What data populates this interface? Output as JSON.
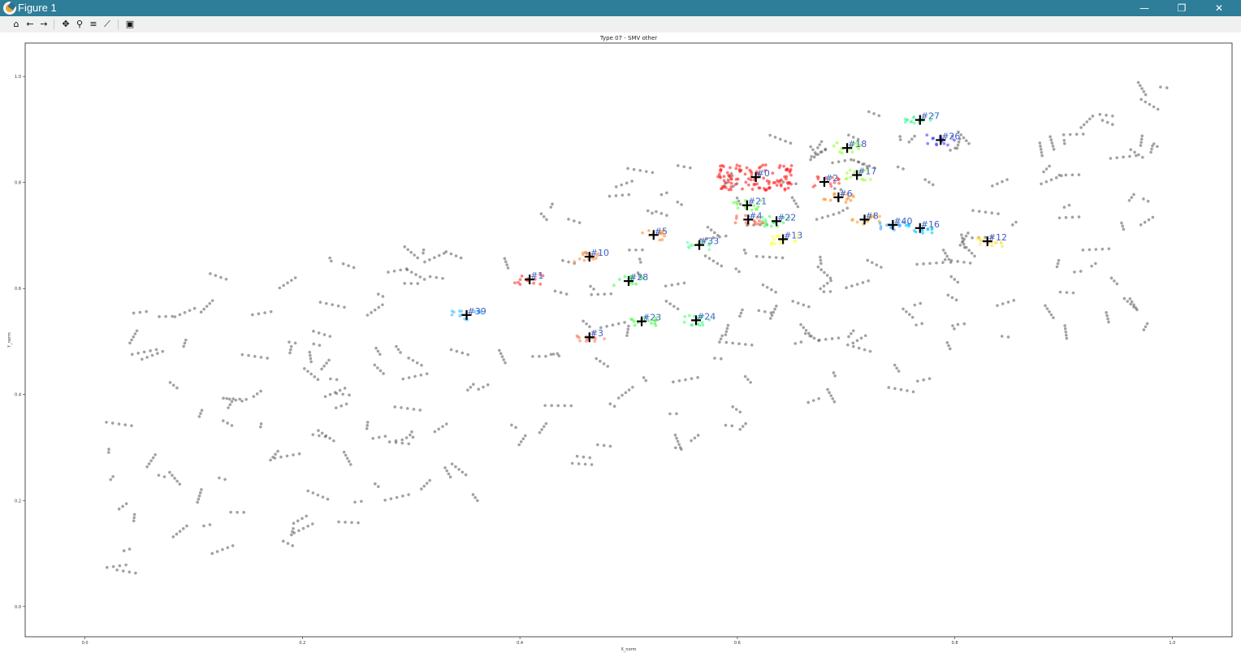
{
  "window": {
    "title": "Figure 1",
    "minimize_glyph": "—",
    "maximize_glyph": "❐",
    "close_glyph": "✕"
  },
  "toolbar": {
    "items": [
      {
        "name": "home-icon",
        "glyph": "⌂"
      },
      {
        "name": "back-arrow-icon",
        "glyph": "←"
      },
      {
        "name": "forward-arrow-icon",
        "glyph": "→"
      },
      {
        "name": "pan-icon",
        "glyph": "✥"
      },
      {
        "name": "zoom-icon",
        "glyph": "⚲"
      },
      {
        "name": "configure-subplots-icon",
        "glyph": "≡"
      },
      {
        "name": "edit-axis-icon",
        "glyph": "⟋"
      },
      {
        "name": "save-icon",
        "glyph": "▣"
      }
    ]
  },
  "chart_data": {
    "type": "scatter",
    "title": "Type 07 - SMV other",
    "xlabel": "X_norm",
    "ylabel": "Y_norm",
    "xlim": [
      -0.055,
      1.055
    ],
    "ylim": [
      -0.057,
      1.063
    ],
    "xticks": [
      0.0,
      0.2,
      0.4,
      0.6,
      0.8,
      1.0
    ],
    "yticks": [
      0.0,
      0.2,
      0.4,
      0.6,
      0.8,
      1.0
    ],
    "xtick_labels": [
      "0.0",
      "0.2",
      "0.4",
      "0.6",
      "0.8",
      "1.0"
    ],
    "ytick_labels": [
      "0.0",
      "0.2",
      "0.4",
      "0.6",
      "0.8",
      "1.0"
    ],
    "background_points_color": "#555555",
    "centroid_marker_color": "#000000",
    "annotation_color": "#3d5fc4",
    "clusters": [
      {
        "label": "#0",
        "x": 0.617,
        "y": 0.81,
        "color": "#ff2020"
      },
      {
        "label": "#1",
        "x": 0.409,
        "y": 0.617,
        "color": "#ff3030"
      },
      {
        "label": "#2",
        "x": 0.68,
        "y": 0.801,
        "color": "#ff4040"
      },
      {
        "label": "#3",
        "x": 0.464,
        "y": 0.508,
        "color": "#ff8060"
      },
      {
        "label": "#4",
        "x": 0.61,
        "y": 0.73,
        "color": "#ff6040"
      },
      {
        "label": "#5",
        "x": 0.523,
        "y": 0.701,
        "color": "#ff9030"
      },
      {
        "label": "#6",
        "x": 0.693,
        "y": 0.772,
        "color": "#ff8c20"
      },
      {
        "label": "#8",
        "x": 0.717,
        "y": 0.73,
        "color": "#ffa020"
      },
      {
        "label": "#10",
        "x": 0.464,
        "y": 0.66,
        "color": "#ff9040"
      },
      {
        "label": "#12",
        "x": 0.83,
        "y": 0.689,
        "color": "#ffe040"
      },
      {
        "label": "#13",
        "x": 0.642,
        "y": 0.693,
        "color": "#ffff40"
      },
      {
        "label": "#16",
        "x": 0.768,
        "y": 0.714,
        "color": "#00c8ff"
      },
      {
        "label": "#17",
        "x": 0.71,
        "y": 0.814,
        "color": "#a0ff40"
      },
      {
        "label": "#18",
        "x": 0.701,
        "y": 0.865,
        "color": "#90ff30"
      },
      {
        "label": "#21",
        "x": 0.609,
        "y": 0.757,
        "color": "#60ff40"
      },
      {
        "label": "#22",
        "x": 0.636,
        "y": 0.727,
        "color": "#40ff60"
      },
      {
        "label": "#23",
        "x": 0.512,
        "y": 0.538,
        "color": "#40ff40"
      },
      {
        "label": "#24",
        "x": 0.562,
        "y": 0.54,
        "color": "#40ff80"
      },
      {
        "label": "#26",
        "x": 0.787,
        "y": 0.88,
        "color": "#4040ff"
      },
      {
        "label": "#27",
        "x": 0.768,
        "y": 0.918,
        "color": "#40ff90"
      },
      {
        "label": "#28",
        "x": 0.5,
        "y": 0.614,
        "color": "#40ff50"
      },
      {
        "label": "#33",
        "x": 0.565,
        "y": 0.682,
        "color": "#60ffa0"
      },
      {
        "label": "#39",
        "x": 0.351,
        "y": 0.55,
        "color": "#40c0ff"
      },
      {
        "label": "#40",
        "x": 0.743,
        "y": 0.72,
        "color": "#40a0ff"
      }
    ],
    "grid": false,
    "legend": "none"
  }
}
